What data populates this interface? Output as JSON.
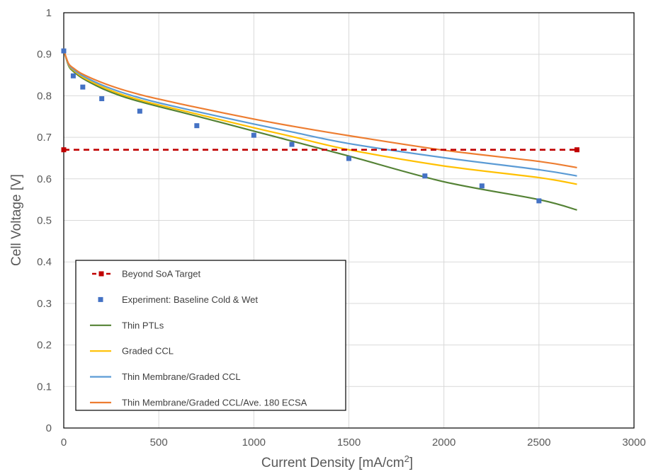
{
  "chart_data": {
    "type": "line",
    "xlabel": "Current Density [mA/cm",
    "xlabel_sup": "2",
    "xlabel_end": "]",
    "ylabel": "Cell Voltage [V]",
    "xlim": [
      0,
      3000
    ],
    "ylim": [
      0,
      1
    ],
    "xticks": [
      0,
      500,
      1000,
      1500,
      2000,
      2500,
      3000
    ],
    "xtick_labels": [
      "0",
      "500",
      "1000",
      "1500",
      "2000",
      "2500",
      "3000"
    ],
    "yticks": [
      0,
      0.1,
      0.2,
      0.3,
      0.4,
      0.5,
      0.6,
      0.7,
      0.8,
      0.9,
      1
    ],
    "ytick_labels": [
      "0",
      "0.1",
      "0.2",
      "0.3",
      "0.4",
      "0.5",
      "0.6",
      "0.7",
      "0.8",
      "0.9",
      "1"
    ],
    "grid": true,
    "legend_position": "bottom-left",
    "series": [
      {
        "name": "Beyond SoA Target",
        "style": "dashed-marker",
        "color": "#c00000",
        "x": [
          0,
          2700
        ],
        "y": [
          0.67,
          0.67
        ]
      },
      {
        "name": "Experiment: Baseline Cold & Wet",
        "style": "markers",
        "color": "#4472c4",
        "x": [
          0,
          50,
          100,
          200,
          400,
          700,
          1000,
          1200,
          1500,
          1900,
          2200,
          2500
        ],
        "y": [
          0.908,
          0.848,
          0.821,
          0.793,
          0.763,
          0.728,
          0.705,
          0.683,
          0.649,
          0.607,
          0.583,
          0.547
        ]
      },
      {
        "name": "Thin PTLs",
        "style": "line",
        "color": "#548235",
        "x": [
          0,
          25,
          50,
          100,
          200,
          300,
          400,
          500,
          700,
          1000,
          1200,
          1500,
          2000,
          2500,
          2700
        ],
        "y": [
          0.91,
          0.873,
          0.859,
          0.842,
          0.818,
          0.8,
          0.786,
          0.774,
          0.751,
          0.715,
          0.691,
          0.655,
          0.593,
          0.55,
          0.525
        ]
      },
      {
        "name": "Graded CCL",
        "style": "line",
        "color": "#ffc000",
        "x": [
          0,
          25,
          50,
          100,
          200,
          300,
          400,
          500,
          700,
          1000,
          1200,
          1500,
          2000,
          2500,
          2700
        ],
        "y": [
          0.91,
          0.875,
          0.862,
          0.845,
          0.822,
          0.804,
          0.79,
          0.778,
          0.756,
          0.723,
          0.702,
          0.67,
          0.631,
          0.603,
          0.587
        ]
      },
      {
        "name": "Thin Membrane/Graded CCL",
        "style": "line",
        "color": "#5b9bd5",
        "x": [
          0,
          25,
          50,
          100,
          200,
          300,
          400,
          500,
          700,
          1000,
          1200,
          1500,
          2000,
          2500,
          2700
        ],
        "y": [
          0.91,
          0.876,
          0.864,
          0.848,
          0.826,
          0.809,
          0.795,
          0.783,
          0.762,
          0.732,
          0.713,
          0.685,
          0.651,
          0.622,
          0.607
        ]
      },
      {
        "name": "Thin Membrane/Graded CCL/Ave. 180 ECSA",
        "style": "line",
        "color": "#ed7d31",
        "x": [
          0,
          25,
          50,
          100,
          200,
          300,
          400,
          500,
          700,
          1000,
          1200,
          1500,
          2000,
          2500,
          2700
        ],
        "y": [
          0.91,
          0.878,
          0.867,
          0.852,
          0.832,
          0.816,
          0.803,
          0.792,
          0.772,
          0.744,
          0.727,
          0.704,
          0.669,
          0.642,
          0.627
        ]
      }
    ]
  }
}
